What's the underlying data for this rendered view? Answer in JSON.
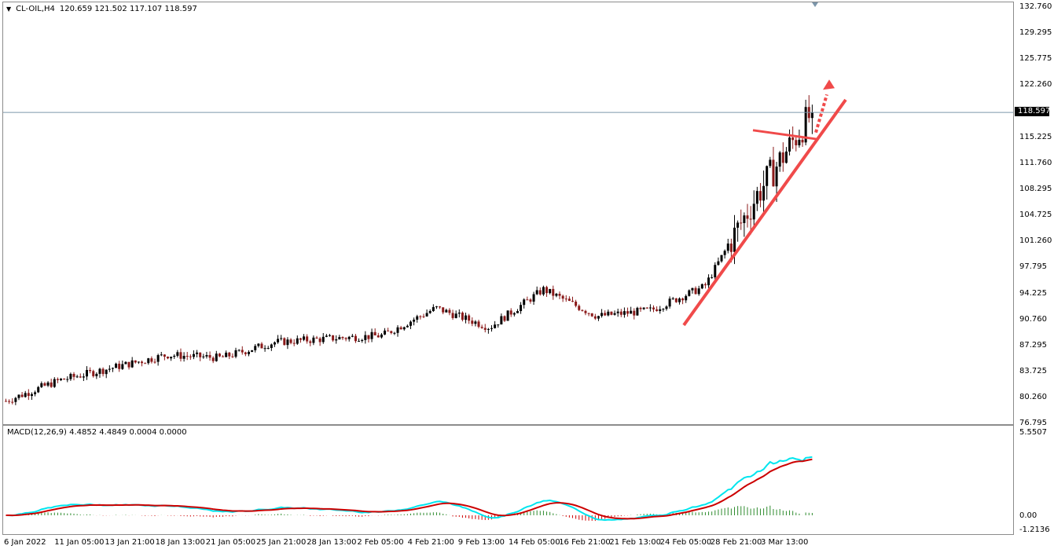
{
  "header": {
    "symbol": "CL-OIL,H4",
    "ohlc": "120.659 121.502 117.107 118.597"
  },
  "current_price": "118.597",
  "price_axis": [
    "132.760",
    "129.295",
    "125.775",
    "122.260",
    "115.225",
    "111.760",
    "108.295",
    "104.725",
    "101.260",
    "97.795",
    "94.225",
    "90.760",
    "87.295",
    "83.725",
    "80.260",
    "76.795"
  ],
  "macd": {
    "label": "MACD(12,26,9) 4.4852 4.4849 0.0004 0.0000",
    "axis": [
      "5.5507",
      "0.00",
      "-1.2136"
    ]
  },
  "time_axis": [
    "6 Jan 2022",
    "11 Jan 05:00",
    "13 Jan 21:00",
    "18 Jan 13:00",
    "21 Jan 05:00",
    "25 Jan 21:00",
    "28 Jan 13:00",
    "2 Feb 05:00",
    "4 Feb 21:00",
    "9 Feb 13:00",
    "14 Feb 05:00",
    "16 Feb 21:00",
    "21 Feb 13:00",
    "24 Feb 05:00",
    "28 Feb 21:00",
    "3 Mar 13:00"
  ],
  "colors": {
    "bull_candle": "#000000",
    "bear_candle": "#8b1a1a",
    "macd_line": "#00e5ee",
    "signal_line": "#cc0000",
    "hist_pos": "#2e8b2e",
    "hist_neg": "#cc0000",
    "annotation": "#f04a4a",
    "price_line": "#7c96aa"
  },
  "chart_data": [
    {
      "type": "candlestick",
      "symbol": "CL-OIL",
      "timeframe": "H4",
      "ylim": [
        76.795,
        132.76
      ],
      "x": [
        "6 Jan 2022",
        "11 Jan 05:00",
        "13 Jan 21:00",
        "18 Jan 13:00",
        "21 Jan 05:00",
        "25 Jan 21:00",
        "28 Jan 13:00",
        "2 Feb 05:00",
        "4 Feb 21:00",
        "9 Feb 13:00",
        "14 Feb 05:00",
        "16 Feb 21:00",
        "21 Feb 13:00",
        "24 Feb 05:00",
        "28 Feb 21:00",
        "3 Mar 13:00"
      ],
      "close": [
        79.8,
        82.6,
        84.3,
        86.0,
        85.6,
        87.7,
        88.2,
        88.6,
        92.3,
        89.7,
        94.8,
        91.2,
        92.0,
        95.2,
        107.8,
        118.6
      ],
      "last_ohlc": {
        "open": 120.659,
        "high": 121.502,
        "low": 117.107,
        "close": 118.597
      },
      "annotations": [
        "rising trendline",
        "horizontal support line",
        "upward dotted arrow"
      ]
    },
    {
      "type": "line",
      "title": "MACD(12,26,9)",
      "ylim": [
        -1.2136,
        5.5507
      ],
      "values_printed": [
        4.4852,
        4.4849,
        0.0004,
        0.0
      ]
    }
  ]
}
